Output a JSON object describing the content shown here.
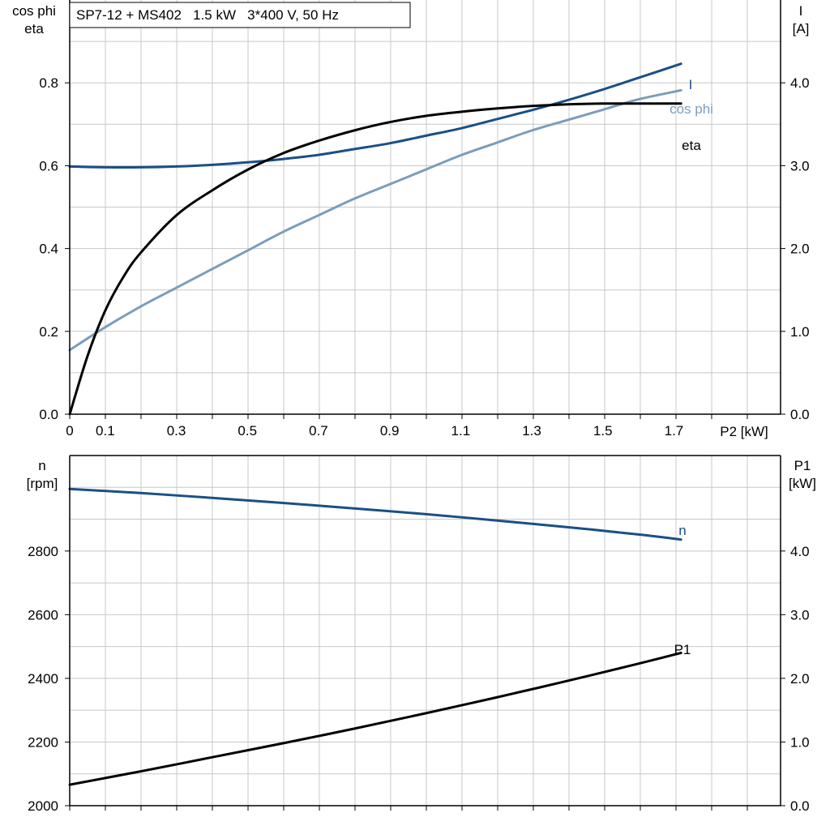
{
  "title_box": "SP7-12 + MS402   1.5 kW   3*400 V, 50 Hz",
  "chart_data": [
    {
      "type": "line",
      "title": "SP7-12 + MS402   1.5 kW   3*400 V, 50 Hz",
      "xlabel": "P2 [kW]",
      "x_ticks": [
        "0",
        "0.1",
        "0.3",
        "0.5",
        "0.7",
        "0.9",
        "1.1",
        "1.3",
        "1.5",
        "1.7"
      ],
      "x_tick_values": [
        0,
        0.1,
        0.3,
        0.5,
        0.7,
        0.9,
        1.1,
        1.3,
        1.5,
        1.7
      ],
      "xlim": [
        0,
        2.0
      ],
      "ylabel_left": [
        "cos phi",
        "eta"
      ],
      "ylim_left": [
        0,
        1.0
      ],
      "y_ticks_left": [
        "0.0",
        "0.2",
        "0.4",
        "0.6",
        "0.8"
      ],
      "ylabel_right": [
        "I",
        "[A]"
      ],
      "ylim_right": [
        0,
        5.0
      ],
      "y_ticks_right": [
        "0.0",
        "1.0",
        "2.0",
        "3.0",
        "4.0"
      ],
      "grid": true,
      "series": [
        {
          "name": "I",
          "axis": "right",
          "color": "#1a4f86",
          "x": [
            0,
            0.1,
            0.2,
            0.3,
            0.4,
            0.5,
            0.6,
            0.7,
            0.8,
            0.9,
            1.0,
            1.1,
            1.2,
            1.3,
            1.4,
            1.5,
            1.6,
            1.72
          ],
          "y": [
            2.99,
            2.98,
            2.98,
            2.99,
            3.01,
            3.04,
            3.08,
            3.13,
            3.2,
            3.27,
            3.36,
            3.45,
            3.56,
            3.67,
            3.79,
            3.92,
            4.06,
            4.23
          ]
        },
        {
          "name": "cos phi",
          "axis": "left",
          "color": "#7b9dbb",
          "x": [
            0,
            0.1,
            0.2,
            0.3,
            0.4,
            0.5,
            0.6,
            0.7,
            0.8,
            0.9,
            1.0,
            1.1,
            1.2,
            1.3,
            1.4,
            1.5,
            1.6,
            1.72
          ],
          "y": [
            0.155,
            0.21,
            0.26,
            0.305,
            0.35,
            0.395,
            0.44,
            0.48,
            0.52,
            0.555,
            0.59,
            0.625,
            0.655,
            0.685,
            0.71,
            0.735,
            0.76,
            0.782
          ]
        },
        {
          "name": "eta",
          "axis": "left",
          "color": "#000000",
          "x": [
            0,
            0.05,
            0.1,
            0.15,
            0.2,
            0.3,
            0.4,
            0.5,
            0.6,
            0.7,
            0.8,
            0.9,
            1.0,
            1.1,
            1.2,
            1.3,
            1.4,
            1.5,
            1.6,
            1.72
          ],
          "y": [
            0.0,
            0.14,
            0.25,
            0.33,
            0.39,
            0.48,
            0.54,
            0.59,
            0.63,
            0.66,
            0.685,
            0.705,
            0.72,
            0.73,
            0.738,
            0.744,
            0.748,
            0.75,
            0.75,
            0.75
          ]
        }
      ]
    },
    {
      "type": "line",
      "xlim": [
        0,
        2.0
      ],
      "x_tick_values": [
        0,
        0.1,
        0.3,
        0.5,
        0.7,
        0.9,
        1.1,
        1.3,
        1.5,
        1.7
      ],
      "ylabel_left": [
        "n",
        "[rpm]"
      ],
      "ylim_left": [
        2000,
        3100
      ],
      "y_ticks_left": [
        "2000",
        "2200",
        "2400",
        "2600",
        "2800"
      ],
      "ylabel_right": [
        "P1",
        "[kW]"
      ],
      "ylim_right": [
        0,
        5.5
      ],
      "y_ticks_right": [
        "0.0",
        "1.0",
        "2.0",
        "3.0",
        "4.0"
      ],
      "grid": true,
      "series": [
        {
          "name": "n",
          "axis": "left",
          "color": "#1a4f86",
          "x": [
            0,
            0.2,
            0.4,
            0.6,
            0.8,
            1.0,
            1.2,
            1.4,
            1.6,
            1.72
          ],
          "y": [
            2995,
            2982,
            2967,
            2951,
            2934,
            2916,
            2896,
            2875,
            2852,
            2836
          ]
        },
        {
          "name": "P1",
          "axis": "right",
          "color": "#000000",
          "x": [
            0,
            0.2,
            0.4,
            0.6,
            0.8,
            1.0,
            1.2,
            1.4,
            1.6,
            1.72
          ],
          "y": [
            0.33,
            0.54,
            0.76,
            0.98,
            1.21,
            1.45,
            1.7,
            1.96,
            2.23,
            2.4
          ]
        }
      ]
    }
  ]
}
